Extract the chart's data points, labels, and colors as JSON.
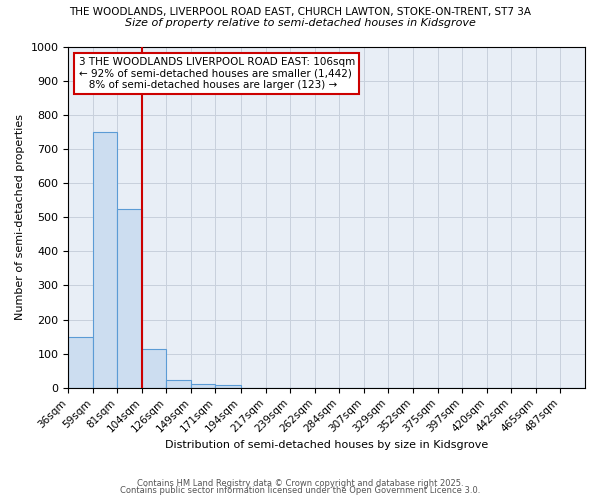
{
  "title_line1": "THE WOODLANDS, LIVERPOOL ROAD EAST, CHURCH LAWTON, STOKE-ON-TRENT, ST7 3A",
  "title_line2": "Size of property relative to semi-detached houses in Kidsgrove",
  "annotation_line1": "3 THE WOODLANDS LIVERPOOL ROAD EAST: 106sqm",
  "annotation_line2": "← 92% of semi-detached houses are smaller (1,442)",
  "annotation_line3": "   8% of semi-detached houses are larger (123) →",
  "xlabel": "Distribution of semi-detached houses by size in Kidsgrove",
  "ylabel": "Number of semi-detached properties",
  "footer1": "Contains HM Land Registry data © Crown copyright and database right 2025.",
  "footer2": "Contains public sector information licensed under the Open Government Licence 3.0.",
  "bar_labels": [
    "36sqm",
    "59sqm",
    "81sqm",
    "104sqm",
    "126sqm",
    "149sqm",
    "171sqm",
    "194sqm",
    "217sqm",
    "239sqm",
    "262sqm",
    "284sqm",
    "307sqm",
    "329sqm",
    "352sqm",
    "375sqm",
    "397sqm",
    "420sqm",
    "442sqm",
    "465sqm",
    "487sqm"
  ],
  "bar_values": [
    150,
    750,
    525,
    115,
    22,
    12,
    8,
    0,
    0,
    0,
    0,
    0,
    0,
    0,
    0,
    0,
    0,
    0,
    0,
    0,
    0
  ],
  "bin_edges": [
    36,
    59,
    81,
    104,
    126,
    149,
    171,
    194,
    217,
    239,
    262,
    284,
    307,
    329,
    352,
    375,
    397,
    420,
    442,
    465,
    487,
    510
  ],
  "bar_color": "#ccddf0",
  "bar_edge_color": "#5b9bd5",
  "grid_color": "#c8d0dc",
  "background_color": "#e8eef6",
  "annotation_box_color": "#cc0000",
  "vline_color": "#cc0000",
  "vline_x": 104,
  "ylim": [
    0,
    1000
  ],
  "yticks": [
    0,
    100,
    200,
    300,
    400,
    500,
    600,
    700,
    800,
    900,
    1000
  ]
}
